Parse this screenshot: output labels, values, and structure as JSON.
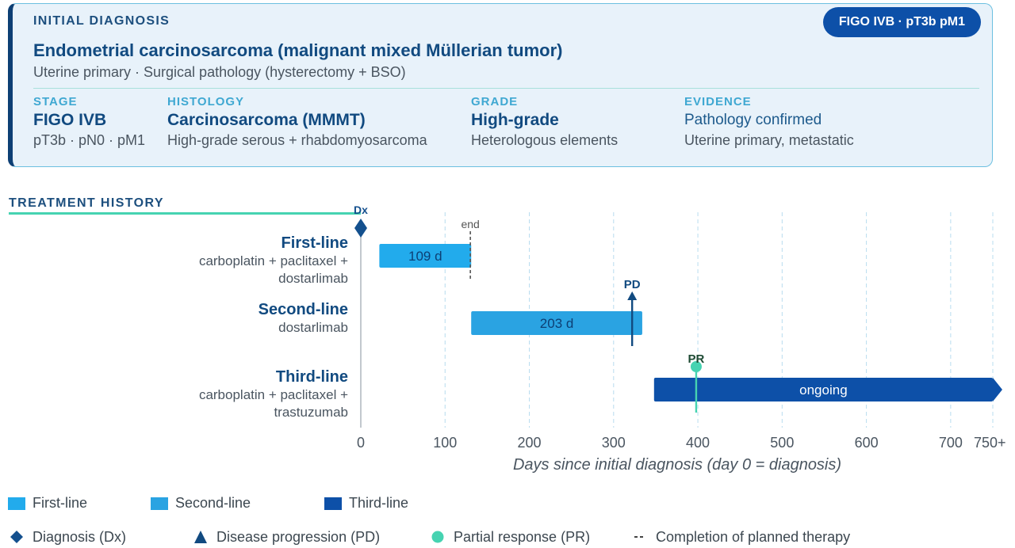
{
  "diagnosis": {
    "heading": "INITIAL DIAGNOSIS",
    "badge": "FIGO IVB · pT3b pM1",
    "title": "Endometrial carcinosarcoma (malignant mixed Müllerian tumor)",
    "subtitle": "Uterine primary · Surgical pathology (hysterectomy + BSO)",
    "columns": [
      {
        "label": "STAGE",
        "value": "FIGO IVB",
        "detail": "pT3b · pN0 · pM1"
      },
      {
        "label": "HISTOLOGY",
        "value": "Carcinosarcoma (MMMT)",
        "detail": "High-grade serous + rhabdomyosarcoma"
      },
      {
        "label": "GRADE",
        "value": "High-grade",
        "detail": "Heterologous elements"
      },
      {
        "label": "EVIDENCE",
        "value": "Pathology confirmed",
        "detail": "Uterine primary, metastatic"
      }
    ]
  },
  "treatment": {
    "heading": "TREATMENT HISTORY",
    "lines": [
      {
        "name": "First-line",
        "drugs": [
          "carboplatin + paclitaxel +",
          "dostarlimab"
        ]
      },
      {
        "name": "Second-line",
        "drugs": [
          "dostarlimab"
        ]
      },
      {
        "name": "Third-line",
        "drugs": [
          "carboplatin + paclitaxel +",
          "trastuzumab"
        ]
      }
    ]
  },
  "chart_data": {
    "type": "gantt",
    "xlabel": "Days since initial diagnosis (day 0 = diagnosis)",
    "xlim": [
      0,
      750
    ],
    "xticks": [
      0,
      100,
      200,
      300,
      400,
      500,
      600,
      700
    ],
    "xtick_labels": [
      "0",
      "100",
      "200",
      "300",
      "400",
      "500",
      "600",
      "700"
    ],
    "x_end_label": "750+",
    "grid": "vertical dashed",
    "bars": [
      {
        "name": "First-line",
        "start": 22,
        "end": 131,
        "label": "109 d",
        "color": "#22abec",
        "text_color": "#0d3f74"
      },
      {
        "name": "Second-line",
        "start": 131,
        "end": 334,
        "label": "203 d",
        "color": "#2aa3e2",
        "text_color": "#0d3f74"
      },
      {
        "name": "Third-line",
        "start": 348,
        "end": 750,
        "label": "ongoing",
        "color": "#0d50a8",
        "text_color": "#ffffff",
        "ongoing": true
      }
    ],
    "events": [
      {
        "type": "diagnosis",
        "day": 0,
        "label": "Dx",
        "color": "#14508e"
      },
      {
        "type": "completion",
        "day": 130,
        "label": "end",
        "color": "#555555"
      },
      {
        "type": "progression",
        "day": 322,
        "label": "PD",
        "color": "#114a80"
      },
      {
        "type": "response",
        "day": 398,
        "label": "PR",
        "color": "#46d3b1"
      }
    ],
    "legend": {
      "series": [
        {
          "label": "First-line",
          "color": "#22abec"
        },
        {
          "label": "Second-line",
          "color": "#2aa3e2"
        },
        {
          "label": "Third-line",
          "color": "#0d50a8"
        }
      ],
      "markers": [
        {
          "label": "Diagnosis (Dx)",
          "symbol": "diamond"
        },
        {
          "label": "Disease progression (PD)",
          "symbol": "triangle"
        },
        {
          "label": "Partial response (PR)",
          "symbol": "circle"
        },
        {
          "label": "Completion of planned therapy",
          "symbol": "dash"
        }
      ]
    }
  }
}
